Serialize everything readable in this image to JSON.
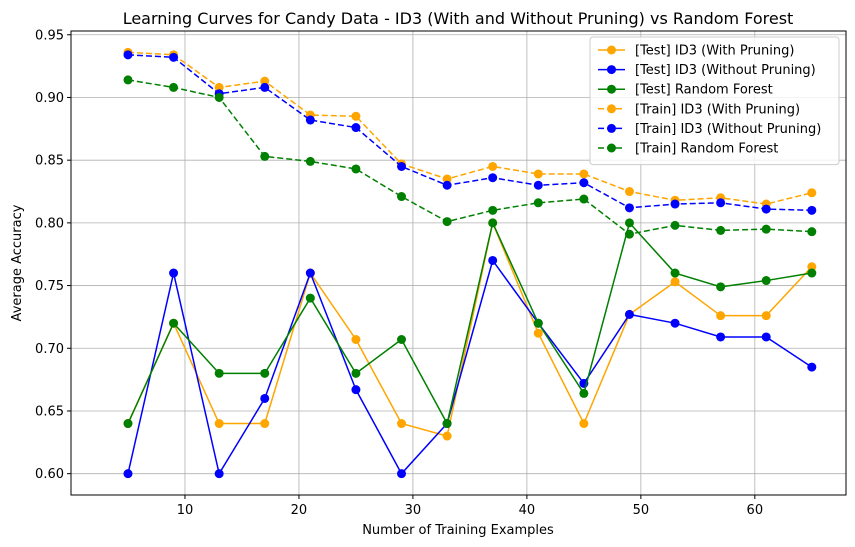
{
  "chart_data": {
    "type": "line",
    "title": "Learning Curves for Candy Data - ID3 (With and Without Pruning) vs Random Forest",
    "xlabel": "Number of Training Examples",
    "ylabel": "Average Accuracy",
    "xlim": [
      0,
      68
    ],
    "ylim": [
      0.583,
      0.953
    ],
    "xticks": [
      10,
      20,
      30,
      40,
      50,
      60
    ],
    "yticks": [
      0.6,
      0.65,
      0.7,
      0.75,
      0.8,
      0.85,
      0.9,
      0.95
    ],
    "ytick_labels": [
      "0.60",
      "0.65",
      "0.70",
      "0.75",
      "0.80",
      "0.85",
      "0.90",
      "0.95"
    ],
    "grid": true,
    "legend_position": "top-right",
    "x": [
      5,
      9,
      13,
      17,
      21,
      25,
      29,
      33,
      37,
      41,
      45,
      49,
      53,
      57,
      61,
      65
    ],
    "series": [
      {
        "name": "[Test] ID3 (With Pruning)",
        "color": "#FFA500",
        "style": "solid",
        "values": [
          0.64,
          0.72,
          0.64,
          0.64,
          0.76,
          0.707,
          0.64,
          0.63,
          0.8,
          0.712,
          0.64,
          0.727,
          0.753,
          0.726,
          0.726,
          0.765
        ]
      },
      {
        "name": "[Test] ID3 (Without Pruning)",
        "color": "#0000FF",
        "style": "solid",
        "values": [
          0.6,
          0.76,
          0.6,
          0.66,
          0.76,
          0.667,
          0.6,
          0.64,
          0.77,
          0.72,
          0.672,
          0.727,
          0.72,
          0.709,
          0.709,
          0.685
        ]
      },
      {
        "name": "[Test] Random Forest",
        "color": "#008000",
        "style": "solid",
        "values": [
          0.64,
          0.72,
          0.68,
          0.68,
          0.74,
          0.68,
          0.707,
          0.64,
          0.8,
          0.72,
          0.664,
          0.8,
          0.76,
          0.749,
          0.754,
          0.76
        ]
      },
      {
        "name": "[Train] ID3 (With Pruning)",
        "color": "#FFA500",
        "style": "dashed",
        "values": [
          0.936,
          0.934,
          0.908,
          0.913,
          0.886,
          0.885,
          0.847,
          0.835,
          0.845,
          0.839,
          0.839,
          0.825,
          0.818,
          0.82,
          0.815,
          0.824
        ]
      },
      {
        "name": "[Train] ID3 (Without Pruning)",
        "color": "#0000FF",
        "style": "dashed",
        "values": [
          0.934,
          0.932,
          0.903,
          0.908,
          0.882,
          0.876,
          0.845,
          0.83,
          0.836,
          0.83,
          0.832,
          0.812,
          0.815,
          0.816,
          0.811,
          0.81
        ]
      },
      {
        "name": "[Train] Random Forest",
        "color": "#008000",
        "style": "dashed",
        "values": [
          0.914,
          0.908,
          0.9,
          0.853,
          0.849,
          0.843,
          0.821,
          0.801,
          0.81,
          0.816,
          0.819,
          0.791,
          0.798,
          0.794,
          0.795,
          0.793
        ]
      }
    ]
  }
}
